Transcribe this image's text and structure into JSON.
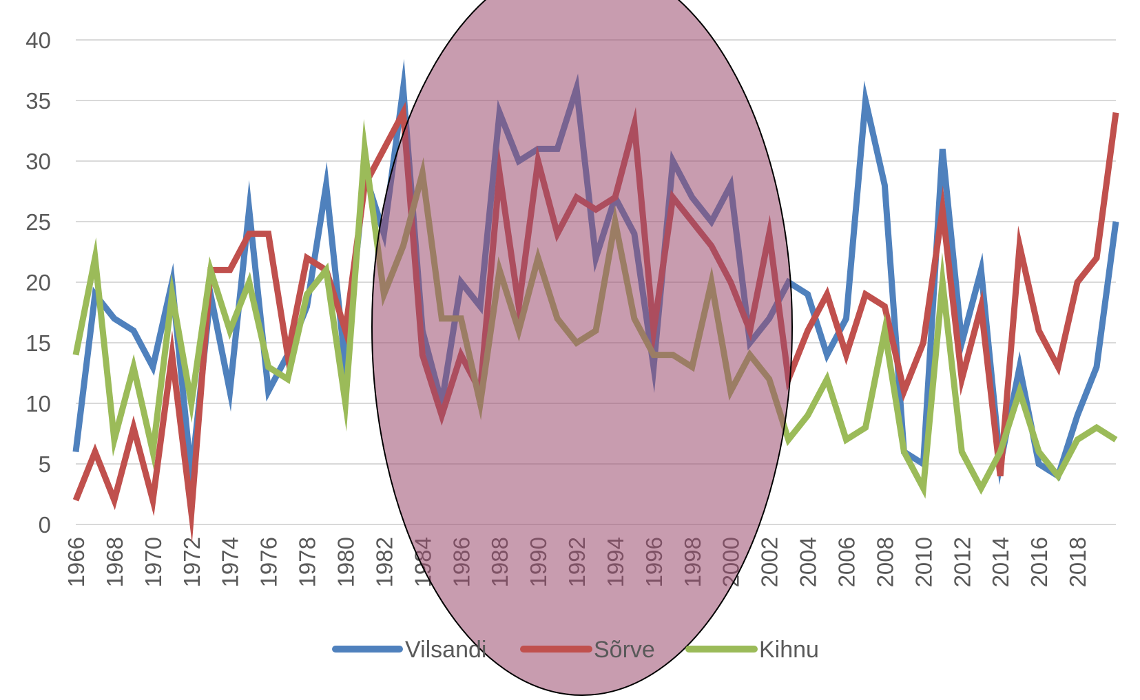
{
  "colors": {
    "background": "#ffffff",
    "grid": "#d9d9d9",
    "tick_text": "#595959",
    "highlight_fill": "#9b4a6e",
    "highlight_opacity": 0.55,
    "highlight_stroke": "#000000"
  },
  "chart_data": {
    "type": "line",
    "title": "",
    "xlabel": "",
    "ylabel": "",
    "ylim": [
      0,
      40
    ],
    "y_ticks": [
      "0",
      "5",
      "10",
      "15",
      "20",
      "25",
      "30",
      "35",
      "40"
    ],
    "grid": true,
    "legend_position": "bottom",
    "x": [
      1966,
      1967,
      1968,
      1969,
      1970,
      1971,
      1972,
      1973,
      1974,
      1975,
      1976,
      1977,
      1978,
      1979,
      1980,
      1981,
      1982,
      1983,
      1984,
      1985,
      1986,
      1987,
      1988,
      1989,
      1990,
      1991,
      1992,
      1993,
      1994,
      1995,
      1996,
      1997,
      1998,
      1999,
      2000,
      2001,
      2002,
      2003,
      2004,
      2005,
      2006,
      2007,
      2008,
      2009,
      2010,
      2011,
      2012,
      2013,
      2014,
      2015,
      2016,
      2017,
      2018,
      2019,
      2020
    ],
    "x_tick_labels": [
      "1966",
      "1968",
      "1970",
      "1972",
      "1974",
      "1976",
      "1978",
      "1980",
      "1982",
      "1984",
      "1986",
      "1988",
      "1990",
      "1992",
      "1994",
      "1996",
      "1998",
      "2000",
      "2002",
      "2004",
      "2006",
      "2008",
      "2010",
      "2012",
      "2014",
      "2016",
      "2018"
    ],
    "series": [
      {
        "name": "Vilsandi",
        "color": "#4f81bd",
        "values": [
          6,
          19,
          17,
          16,
          13,
          20,
          4,
          19,
          11,
          26,
          11,
          14,
          18,
          28,
          13,
          29,
          24,
          36,
          16,
          10,
          20,
          18,
          34,
          30,
          31,
          31,
          36,
          22,
          27,
          24,
          13,
          30,
          27,
          25,
          28,
          15,
          17,
          20,
          19,
          14,
          17,
          35,
          28,
          6,
          5,
          31,
          15,
          21,
          5,
          13,
          5,
          4,
          9,
          13,
          25
        ]
      },
      {
        "name": "Sõrve",
        "color": "#c0504d",
        "values": [
          2,
          6,
          2,
          8,
          2,
          14,
          1,
          21,
          21,
          24,
          24,
          14,
          22,
          21,
          16,
          28,
          31,
          34,
          14,
          9,
          14,
          11,
          29,
          18,
          30,
          24,
          27,
          26,
          27,
          33,
          16,
          27,
          25,
          23,
          20,
          16,
          24,
          12,
          16,
          19,
          14,
          19,
          18,
          11,
          15,
          26,
          12,
          18,
          4,
          23,
          16,
          13,
          20,
          22,
          34
        ]
      },
      {
        "name": "Kihnu",
        "color": "#9bbb59",
        "values": [
          14,
          22,
          7,
          13,
          6,
          19,
          10,
          21,
          16,
          20,
          13,
          12,
          19,
          21,
          10,
          31,
          19,
          23,
          29,
          17,
          17,
          10,
          21,
          16,
          22,
          17,
          15,
          16,
          25,
          17,
          14,
          14,
          13,
          20,
          11,
          14,
          12,
          7,
          9,
          12,
          7,
          8,
          16,
          6,
          3,
          20,
          6,
          3,
          6,
          11,
          6,
          4,
          7,
          8,
          7
        ]
      }
    ]
  }
}
